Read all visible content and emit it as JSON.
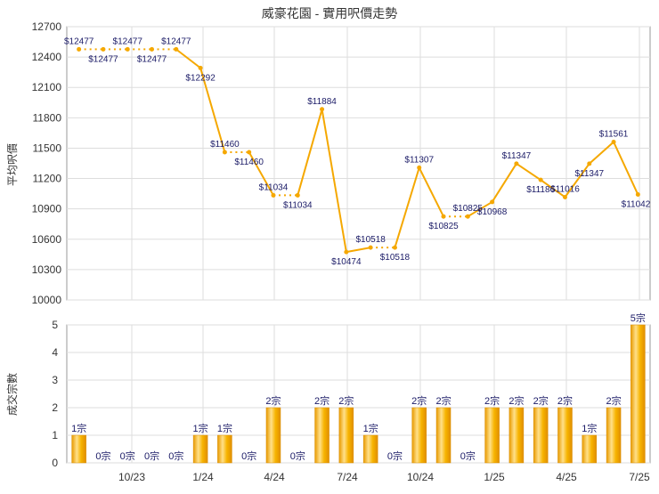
{
  "chart_data": [
    {
      "type": "line",
      "title": "威豪花園 - 實用呎價走勢",
      "ylabel": "平均呎價",
      "ylim": [
        10000,
        12700
      ],
      "yticks": [
        10000,
        10300,
        10600,
        10900,
        11200,
        11500,
        11800,
        12100,
        12400,
        12700
      ],
      "grid": true,
      "point_labels": [
        "$12477",
        "$12477",
        "$12477",
        "$12477",
        "$12477",
        "$12292",
        "$11460",
        "$11460",
        "$11034",
        "$11034",
        "$11884",
        "$10474",
        "$10518",
        "$10518",
        "$11307",
        "$10825",
        "$10825",
        "$10968",
        "$11347",
        "$11186",
        "$11016",
        "$11347",
        "$11561",
        "$11042"
      ],
      "values": [
        12477,
        12477,
        12477,
        12477,
        12477,
        12292,
        11460,
        11460,
        11034,
        11034,
        11884,
        10474,
        10518,
        10518,
        11307,
        10825,
        10825,
        10968,
        11347,
        11186,
        11016,
        11347,
        11561,
        11042
      ],
      "dotted_segments": [
        0,
        1,
        2,
        3,
        6,
        8,
        12,
        15
      ],
      "color": "#f5a800"
    },
    {
      "type": "bar",
      "ylabel": "成交宗數",
      "ylim": [
        0,
        5
      ],
      "yticks": [
        0,
        1,
        2,
        3,
        4,
        5
      ],
      "grid": true,
      "x_tick_labels": [
        "10/23",
        "1/24",
        "4/24",
        "7/24",
        "10/24",
        "1/25",
        "4/25",
        "7/25"
      ],
      "values": [
        1,
        0,
        0,
        0,
        0,
        1,
        1,
        0,
        2,
        0,
        2,
        2,
        1,
        0,
        2,
        2,
        0,
        2,
        2,
        2,
        2,
        1,
        2,
        5
      ],
      "bar_labels": [
        "1宗",
        "0宗",
        "0宗",
        "0宗",
        "0宗",
        "1宗",
        "1宗",
        "0宗",
        "2宗",
        "0宗",
        "2宗",
        "2宗",
        "1宗",
        "0宗",
        "2宗",
        "2宗",
        "0宗",
        "2宗",
        "2宗",
        "2宗",
        "2宗",
        "1宗",
        "2宗",
        "5宗"
      ],
      "color": "#f5a800"
    }
  ]
}
